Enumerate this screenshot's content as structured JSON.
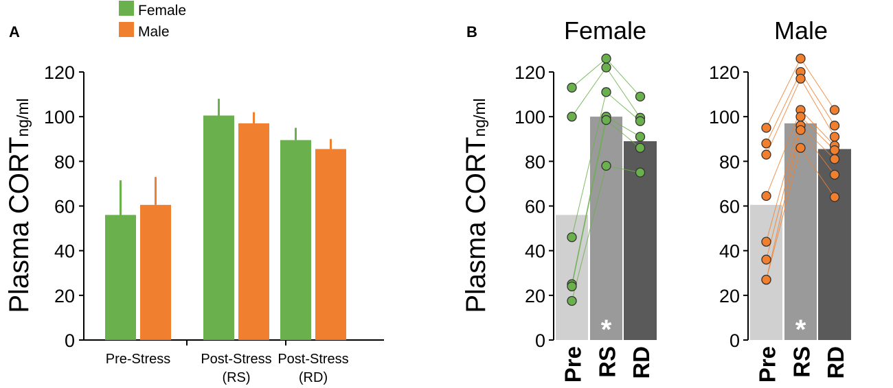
{
  "legend": [
    {
      "label": "Female",
      "color": "#6ab04c"
    },
    {
      "label": "Male",
      "color": "#f08030"
    }
  ],
  "colors": {
    "female": "#6ab04c",
    "male": "#f08030",
    "pre": "#d0d0d0",
    "rs": "#9a9a9a",
    "rd": "#5a5a5a",
    "axis": "#000000"
  },
  "chart_data": [
    {
      "panel": "A",
      "type": "bar",
      "ylabel_main": "Plasma CORT",
      "ylabel_unit": "ng/ml",
      "ylim": [
        0,
        120
      ],
      "yticks": [
        "0",
        "20",
        "40",
        "60",
        "80",
        "100",
        "120"
      ],
      "categories": [
        {
          "line1": "Pre-Stress",
          "line2": ""
        },
        {
          "line1": "Post-Stress",
          "line2": "(RS)"
        },
        {
          "line1": "Post-Stress",
          "line2": "(RD)"
        }
      ],
      "series": [
        {
          "name": "Female",
          "values": [
            56,
            100.5,
            89.5
          ],
          "errors": [
            15.5,
            7.5,
            5.5
          ]
        },
        {
          "name": "Male",
          "values": [
            60.5,
            97,
            85.5
          ],
          "errors": [
            12.5,
            5,
            4.5
          ]
        }
      ]
    },
    {
      "panel": "B",
      "type": "bar",
      "title": "Female",
      "ylabel_main": "Plasma CORT",
      "ylabel_unit": "ng/ml",
      "ylim": [
        0,
        120
      ],
      "yticks": [
        "0",
        "20",
        "40",
        "60",
        "80",
        "100",
        "120"
      ],
      "categories": [
        "Pre",
        "RS",
        "RD"
      ],
      "values": [
        56,
        100,
        89
      ],
      "significance": [
        "",
        "*",
        ""
      ],
      "individual": [
        [
          113,
          126,
          109
        ],
        [
          100,
          122,
          99.5
        ],
        [
          46,
          111,
          98
        ],
        [
          25,
          100,
          91
        ],
        [
          24,
          98.5,
          86
        ],
        [
          17.5,
          78,
          75
        ]
      ]
    },
    {
      "panel": "B",
      "type": "bar",
      "title": "Male",
      "ylim": [
        0,
        120
      ],
      "yticks": [
        "0",
        "20",
        "40",
        "60",
        "80",
        "100",
        "120"
      ],
      "categories": [
        "Pre",
        "RS",
        "RD"
      ],
      "values": [
        60.5,
        97,
        85.5
      ],
      "significance": [
        "",
        "*",
        ""
      ],
      "individual": [
        [
          95,
          126,
          103
        ],
        [
          88,
          120,
          96
        ],
        [
          83,
          117,
          91
        ],
        [
          64.5,
          103,
          87
        ],
        [
          44,
          100,
          85
        ],
        [
          36,
          96,
          81
        ],
        [
          27,
          94,
          74
        ],
        [
          27,
          86,
          64
        ]
      ]
    }
  ],
  "panel_labels": {
    "a": "A",
    "b": "B"
  }
}
